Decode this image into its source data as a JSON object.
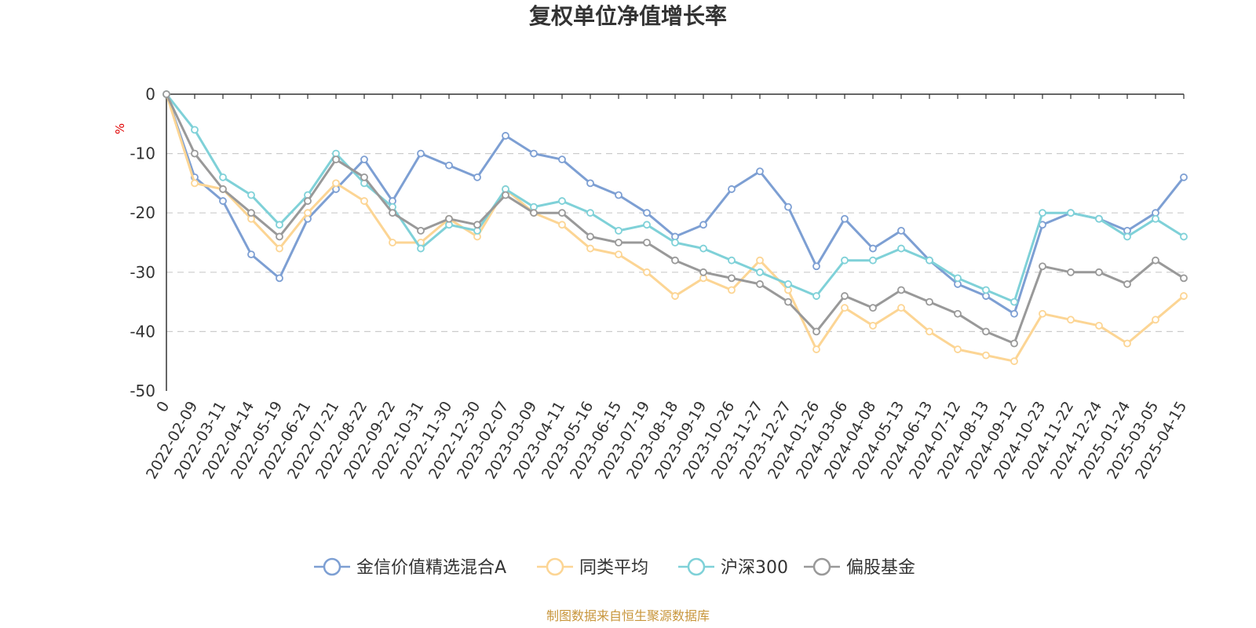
{
  "source_note": "制图数据来自恒生聚源数据库",
  "chart_data": {
    "type": "line",
    "title": "复权单位净值增长率",
    "ylabel": "%",
    "xlabel": "",
    "ylim": [
      -50,
      0
    ],
    "yticks": [
      0,
      -10,
      -20,
      -30,
      -40,
      -50
    ],
    "grid": true,
    "legend_position": "bottom",
    "categories": [
      "0",
      "2022-02-09",
      "2022-03-11",
      "2022-04-14",
      "2022-05-19",
      "2022-06-21",
      "2022-07-21",
      "2022-08-22",
      "2022-09-22",
      "2022-10-31",
      "2022-11-30",
      "2022-12-30",
      "2023-02-07",
      "2023-03-09",
      "2023-04-11",
      "2023-05-16",
      "2023-06-15",
      "2023-07-19",
      "2023-08-18",
      "2023-09-19",
      "2023-10-26",
      "2023-11-27",
      "2023-12-27",
      "2024-01-26",
      "2024-03-06",
      "2024-04-08",
      "2024-05-13",
      "2024-06-13",
      "2024-07-12",
      "2024-08-13",
      "2024-09-12",
      "2024-10-23",
      "2024-11-22",
      "2024-12-24",
      "2025-01-24",
      "2025-03-05",
      "2025-04-15"
    ],
    "series": [
      {
        "name": "金信价值精选混合A",
        "color": "#7d9fd3",
        "values": [
          0,
          -14,
          -18,
          -27,
          -31,
          -21,
          -16,
          -11,
          -18,
          -10,
          -12,
          -14,
          -7,
          -10,
          -11,
          -15,
          -17,
          -20,
          -24,
          -22,
          -16,
          -13,
          -19,
          -29,
          -21,
          -26,
          -23,
          -28,
          -32,
          -34,
          -37,
          -22,
          -20,
          -21,
          -23,
          -20,
          -14
        ]
      },
      {
        "name": "同类平均",
        "color": "#fcd594",
        "values": [
          0,
          -15,
          -16,
          -21,
          -26,
          -20,
          -15,
          -18,
          -25,
          -25,
          -21,
          -24,
          -16,
          -20,
          -22,
          -26,
          -27,
          -30,
          -34,
          -31,
          -33,
          -28,
          -33,
          -43,
          -36,
          -39,
          -36,
          -40,
          -43,
          -44,
          -45,
          -37,
          -38,
          -39,
          -42,
          -38,
          -34
        ]
      },
      {
        "name": "沪深300",
        "color": "#7fd1d8",
        "values": [
          0,
          -6,
          -14,
          -17,
          -22,
          -17,
          -10,
          -15,
          -19,
          -26,
          -22,
          -23,
          -16,
          -19,
          -18,
          -20,
          -23,
          -22,
          -25,
          -26,
          -28,
          -30,
          -32,
          -34,
          -28,
          -28,
          -26,
          -28,
          -31,
          -33,
          -35,
          -20,
          -20,
          -21,
          -24,
          -21,
          -24
        ]
      },
      {
        "name": "偏股基金",
        "color": "#999999",
        "values": [
          0,
          -10,
          -16,
          -20,
          -24,
          -18,
          -11,
          -14,
          -20,
          -23,
          -21,
          -22,
          -17,
          -20,
          -20,
          -24,
          -25,
          -25,
          -28,
          -30,
          -31,
          -32,
          -35,
          -40,
          -34,
          -36,
          -33,
          -35,
          -37,
          -40,
          -42,
          -29,
          -30,
          -30,
          -32,
          -28,
          -31
        ]
      }
    ]
  }
}
